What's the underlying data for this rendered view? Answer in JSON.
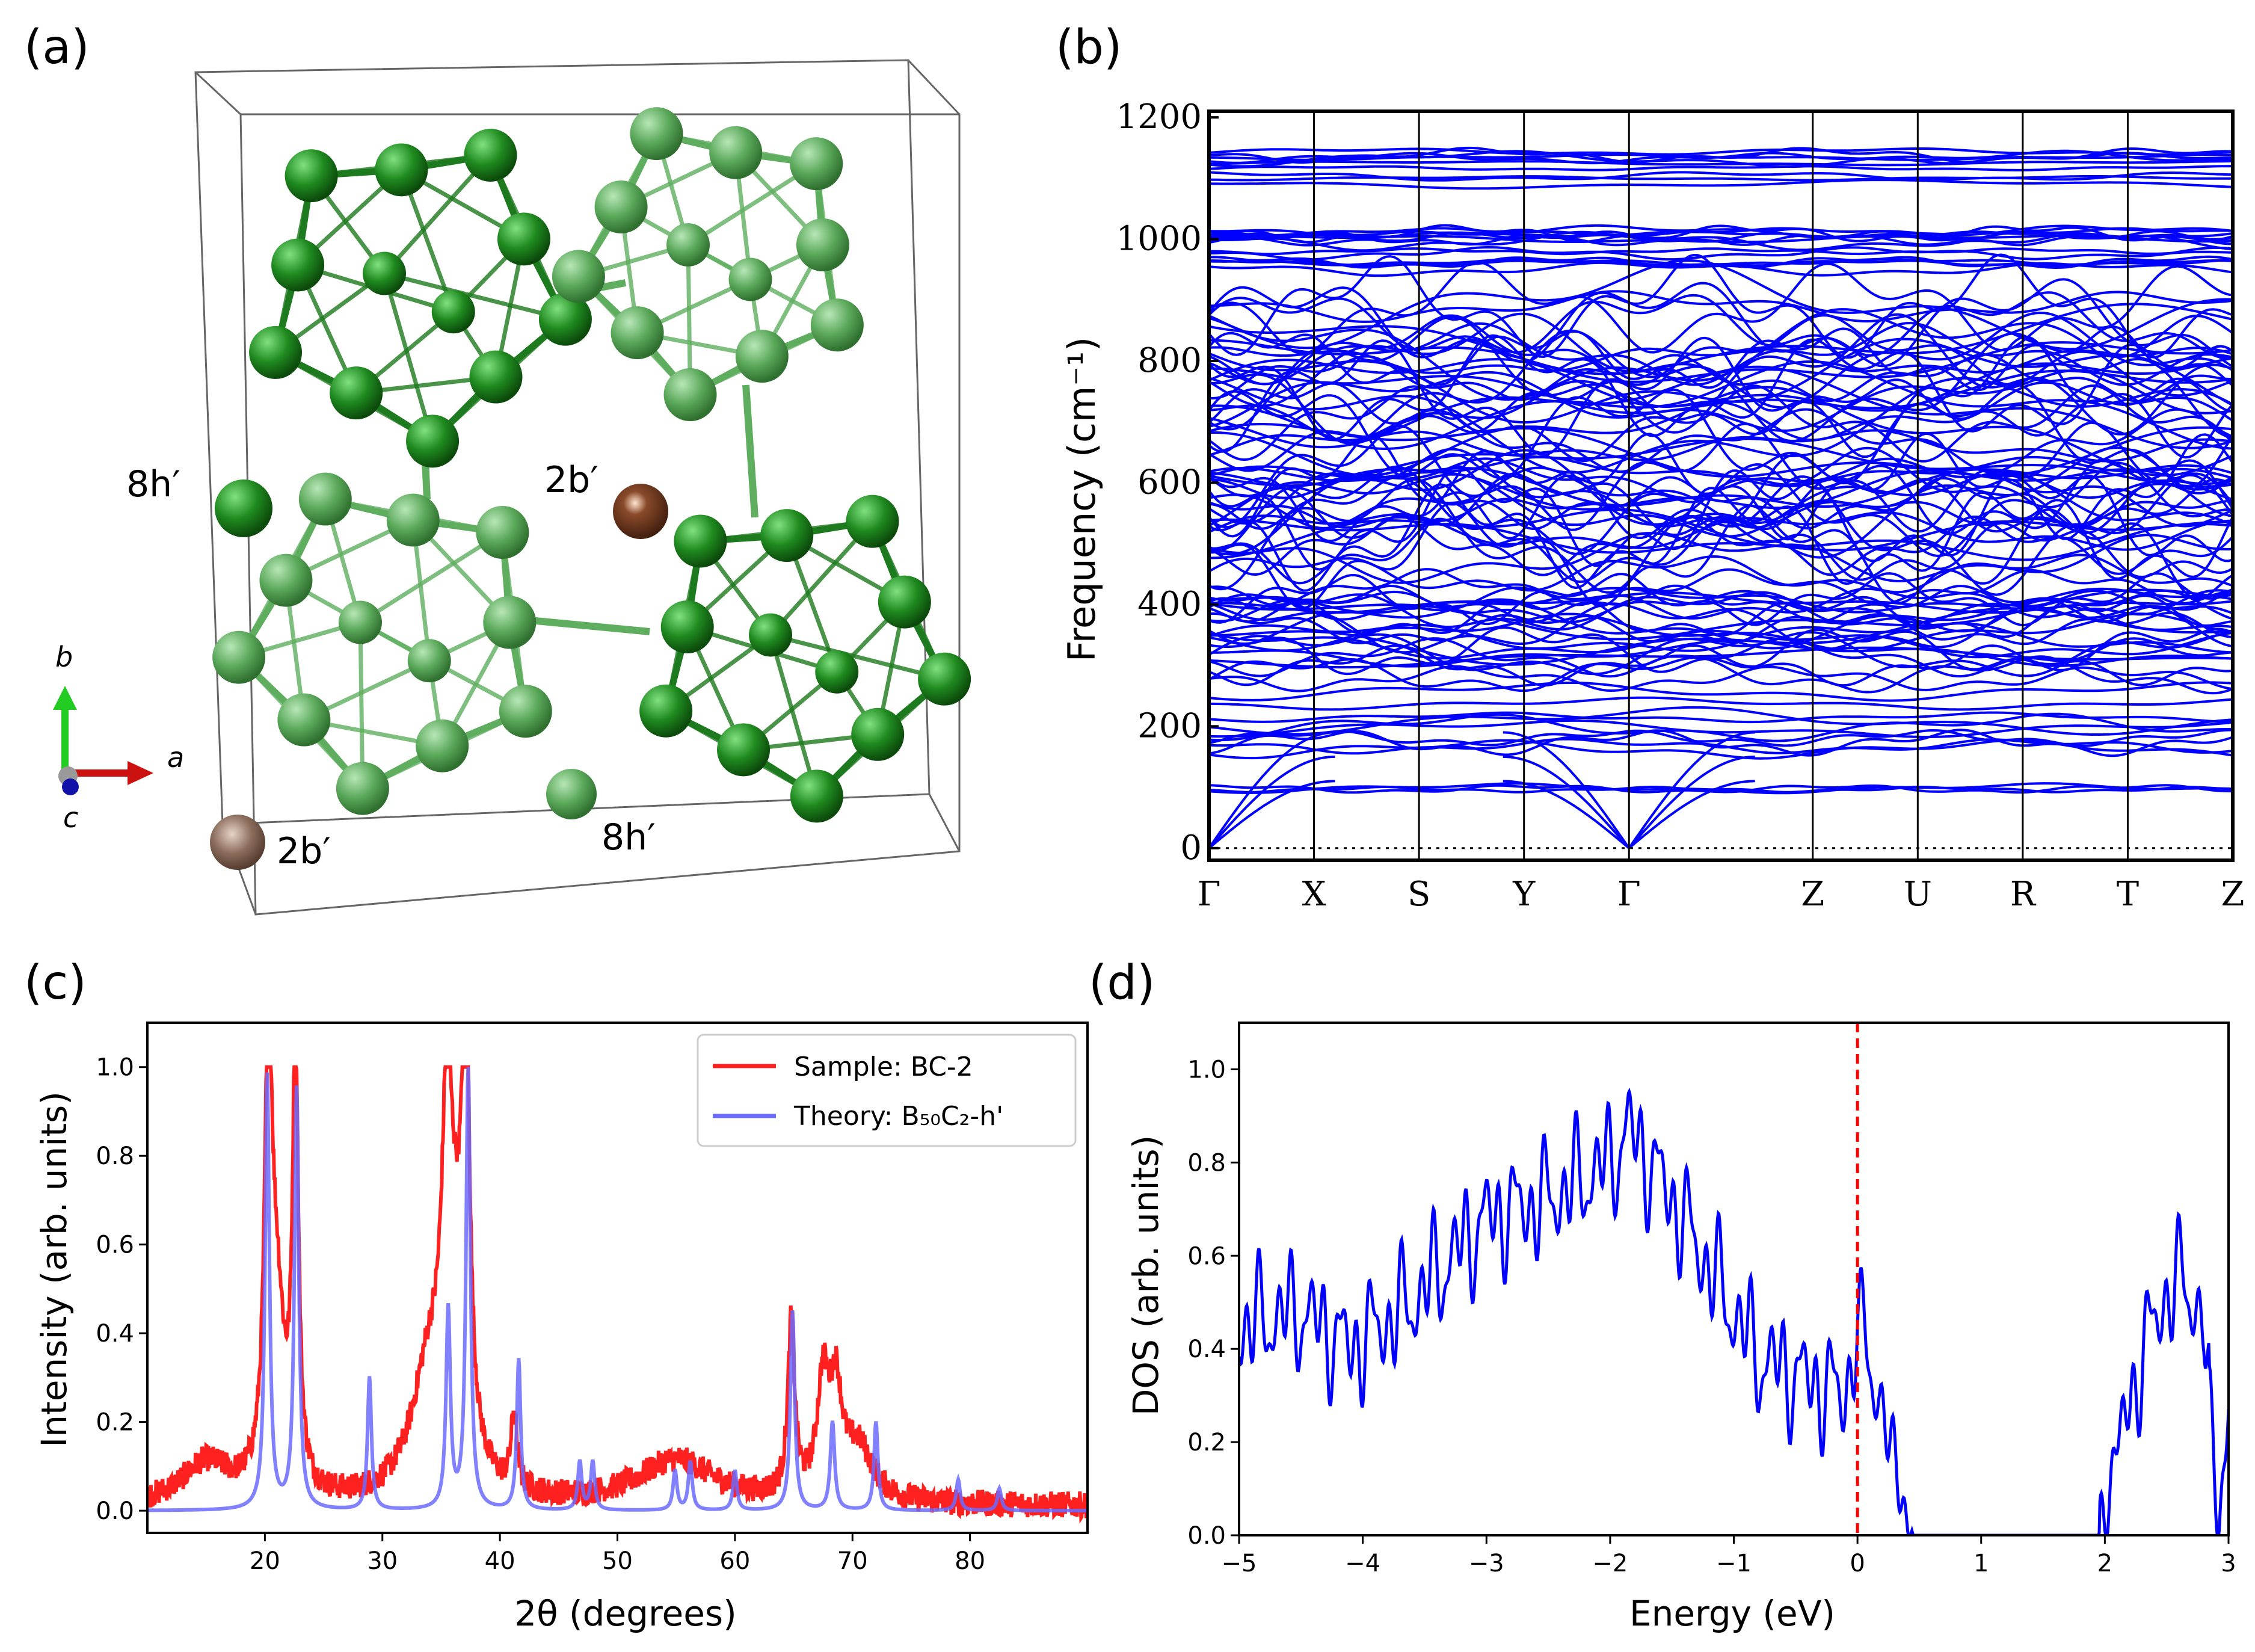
{
  "panels": {
    "a": {
      "label": "(a)",
      "site_labels": [
        "8h′",
        "2b′",
        "2b′",
        "8h′"
      ],
      "axes": {
        "a": "a",
        "b": "b",
        "c": "c"
      },
      "colors": {
        "cluster_dark": "#1e7a1e",
        "cluster_light": "#5fae5f",
        "atom_2b": "#6b3a22",
        "cell": "#555555"
      }
    },
    "b": {
      "label": "(b)"
    },
    "c": {
      "label": "(c)"
    },
    "d": {
      "label": "(d)"
    }
  },
  "chart_data": [
    {
      "panel": "b",
      "type": "line",
      "title": "",
      "ylabel": "Frequency (cm⁻¹)",
      "ylim": [
        -20,
        1210
      ],
      "yticks": [
        0,
        200,
        400,
        600,
        800,
        1000,
        1200
      ],
      "kpath": [
        "Γ",
        "X",
        "S",
        "Y",
        "Γ",
        "Z",
        "U",
        "R",
        "T",
        "Z"
      ],
      "kpos": [
        0,
        1,
        2,
        3,
        4,
        5.75,
        6.75,
        7.75,
        8.75,
        9.75
      ],
      "color": "#0000ff",
      "zero_line": "dotted",
      "branch_bands": [
        [
          70,
          110
        ],
        [
          150,
          260
        ],
        [
          260,
          470
        ],
        [
          470,
          900
        ],
        [
          940,
          1015
        ],
        [
          1090,
          1150
        ]
      ],
      "acoustic_max": 200
    },
    {
      "panel": "c",
      "type": "line",
      "xlabel": "2θ (degrees)",
      "ylabel": "Intensity (arb. units)",
      "xlim": [
        10,
        90
      ],
      "ylim": [
        -0.05,
        1.1
      ],
      "xticks": [
        20,
        30,
        40,
        50,
        60,
        70,
        80
      ],
      "yticks": [
        0.0,
        0.2,
        0.4,
        0.6,
        0.8,
        1.0
      ],
      "legend_position": "top-right",
      "series": [
        {
          "name": "Sample: BC-2",
          "color": "#ff2020",
          "peaks": [
            [
              20.3,
              0.98,
              0.35
            ],
            [
              21.0,
              0.4,
              0.8
            ],
            [
              22.6,
              1.0,
              0.3
            ],
            [
              35.5,
              0.66,
              0.5
            ],
            [
              34.0,
              0.28,
              1.8
            ],
            [
              37.1,
              0.98,
              0.35
            ],
            [
              36.3,
              0.35,
              1.0
            ],
            [
              41.2,
              0.17,
              0.3
            ],
            [
              55.0,
              0.1,
              4.0
            ],
            [
              64.8,
              0.39,
              0.35
            ],
            [
              67.5,
              0.25,
              0.6
            ],
            [
              68.6,
              0.22,
              0.6
            ],
            [
              70.5,
              0.12,
              1.5
            ],
            [
              15.0,
              0.09,
              2.5
            ]
          ]
        },
        {
          "name": "Theory: B₅₀C₂-h'",
          "color": "#6b6bff",
          "peaks": [
            [
              20.2,
              0.98,
              0.22
            ],
            [
              22.7,
              0.95,
              0.22
            ],
            [
              28.9,
              0.3,
              0.2
            ],
            [
              35.6,
              0.45,
              0.22
            ],
            [
              37.3,
              1.0,
              0.22
            ],
            [
              41.6,
              0.34,
              0.2
            ],
            [
              46.8,
              0.11,
              0.2
            ],
            [
              47.9,
              0.11,
              0.2
            ],
            [
              54.9,
              0.09,
              0.2
            ],
            [
              56.2,
              0.11,
              0.2
            ],
            [
              60.0,
              0.09,
              0.2
            ],
            [
              64.9,
              0.45,
              0.22
            ],
            [
              68.3,
              0.2,
              0.22
            ],
            [
              72.0,
              0.2,
              0.2
            ],
            [
              79.0,
              0.07,
              0.2
            ],
            [
              82.5,
              0.05,
              0.2
            ]
          ]
        }
      ]
    },
    {
      "panel": "d",
      "type": "line",
      "xlabel": "Energy (eV)",
      "ylabel": "DOS (arb. units)",
      "xlim": [
        -5,
        3
      ],
      "ylim": [
        0,
        1.1
      ],
      "xticks": [
        -5,
        -4,
        -3,
        -2,
        -1,
        0,
        1,
        2,
        3
      ],
      "yticks": [
        0.0,
        0.2,
        0.4,
        0.6,
        0.8,
        1.0
      ],
      "fermi_level": 0,
      "fermi_color": "#ff0000",
      "color": "#0000ff",
      "envelope": [
        [
          -5.0,
          0.45
        ],
        [
          -4.5,
          0.48
        ],
        [
          -4.1,
          0.4
        ],
        [
          -3.6,
          0.5
        ],
        [
          -3.0,
          0.68
        ],
        [
          -2.5,
          0.72
        ],
        [
          -2.0,
          0.8
        ],
        [
          -1.85,
          0.87
        ],
        [
          -1.5,
          0.72
        ],
        [
          -1.15,
          0.55
        ],
        [
          -0.8,
          0.38
        ],
        [
          -0.4,
          0.33
        ],
        [
          -0.1,
          0.3
        ],
        [
          0.0,
          0.45
        ],
        [
          0.15,
          0.33
        ],
        [
          0.3,
          0.15
        ],
        [
          0.45,
          0.0
        ],
        [
          1.95,
          0.0
        ],
        [
          2.15,
          0.25
        ],
        [
          2.45,
          0.5
        ],
        [
          2.65,
          0.55
        ],
        [
          2.8,
          0.45
        ],
        [
          2.92,
          0.02
        ],
        [
          3.0,
          0.28
        ]
      ]
    }
  ]
}
